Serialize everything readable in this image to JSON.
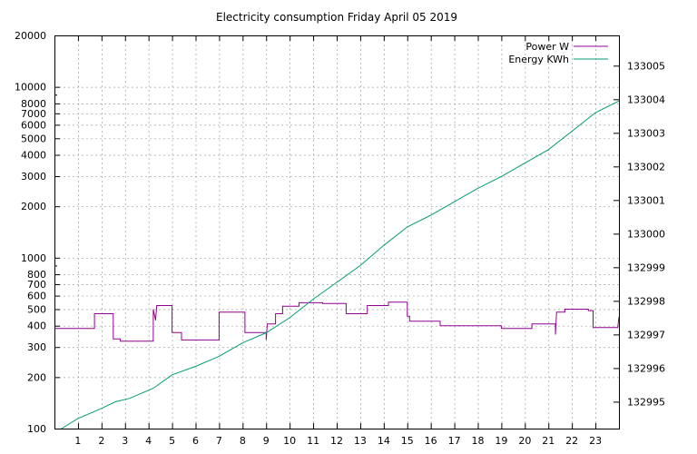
{
  "chart_data": {
    "type": "line",
    "title": "Electricity consumption Friday April 05 2019",
    "x": {
      "range": [
        0,
        24
      ],
      "ticks": [
        1,
        2,
        3,
        4,
        5,
        6,
        7,
        8,
        9,
        10,
        11,
        12,
        13,
        14,
        15,
        16,
        17,
        18,
        19,
        20,
        21,
        22,
        23
      ],
      "tick_labels": [
        "1",
        "2",
        "3",
        "4",
        "5",
        "6",
        "7",
        "8",
        "9",
        "10",
        "11",
        "12",
        "13",
        "14",
        "15",
        "16",
        "17",
        "18",
        "19",
        "20",
        "21",
        "22",
        "23"
      ]
    },
    "y_left": {
      "scale": "log",
      "range": [
        100,
        20000
      ],
      "ticks": [
        100,
        200,
        300,
        400,
        500,
        600,
        700,
        800,
        1000,
        2000,
        3000,
        4000,
        5000,
        6000,
        7000,
        8000,
        10000,
        20000
      ],
      "tick_labels": [
        "100",
        "200",
        "300",
        "400",
        "500",
        "600",
        "700",
        "800",
        "1000",
        "2000",
        "3000",
        "4000",
        "5000",
        "6000",
        "7000",
        "8000",
        "10000",
        "20000"
      ]
    },
    "y_right": {
      "scale": "linear",
      "range": [
        132994.2,
        133005.9
      ],
      "ticks": [
        132995,
        132996,
        132997,
        132998,
        132999,
        133000,
        133001,
        133002,
        133003,
        133004,
        133005
      ],
      "tick_labels": [
        "132995",
        "132996",
        "132997",
        "132998",
        "132999",
        "133000",
        "133001",
        "133002",
        "133003",
        "133004",
        "133005"
      ]
    },
    "grid": true,
    "legend_position": "top-right",
    "series": [
      {
        "name": "Power W",
        "axis": "left",
        "color": "#940094",
        "step": true,
        "points": [
          [
            0,
            385
          ],
          [
            1.7,
            385
          ],
          [
            1.7,
            470
          ],
          [
            2.5,
            470
          ],
          [
            2.5,
            335
          ],
          [
            2.8,
            335
          ],
          [
            2.8,
            325
          ],
          [
            4.2,
            325
          ],
          [
            4.2,
            500
          ],
          [
            4.3,
            430
          ],
          [
            4.35,
            525
          ],
          [
            5.0,
            525
          ],
          [
            5.0,
            365
          ],
          [
            5.4,
            365
          ],
          [
            5.4,
            330
          ],
          [
            7.0,
            330
          ],
          [
            7.0,
            480
          ],
          [
            8.1,
            480
          ],
          [
            8.1,
            365
          ],
          [
            9.0,
            365
          ],
          [
            9.0,
            330
          ],
          [
            9.05,
            410
          ],
          [
            9.4,
            410
          ],
          [
            9.4,
            470
          ],
          [
            9.7,
            470
          ],
          [
            9.7,
            520
          ],
          [
            10.4,
            520
          ],
          [
            10.4,
            545
          ],
          [
            11.4,
            545
          ],
          [
            11.4,
            540
          ],
          [
            12.4,
            540
          ],
          [
            12.4,
            470
          ],
          [
            13.3,
            470
          ],
          [
            13.3,
            525
          ],
          [
            14.2,
            525
          ],
          [
            14.2,
            550
          ],
          [
            15.0,
            550
          ],
          [
            15.0,
            455
          ],
          [
            15.1,
            455
          ],
          [
            15.1,
            425
          ],
          [
            16.4,
            425
          ],
          [
            16.4,
            400
          ],
          [
            19.0,
            400
          ],
          [
            19.0,
            385
          ],
          [
            20.3,
            385
          ],
          [
            20.3,
            410
          ],
          [
            21.3,
            410
          ],
          [
            21.3,
            355
          ],
          [
            21.35,
            480
          ],
          [
            21.7,
            480
          ],
          [
            21.7,
            500
          ],
          [
            22.7,
            500
          ],
          [
            22.7,
            490
          ],
          [
            22.9,
            490
          ],
          [
            22.9,
            390
          ],
          [
            23.95,
            390
          ],
          [
            24,
            450
          ]
        ]
      },
      {
        "name": "Energy KWh",
        "axis": "right",
        "color": "#009e73",
        "step": false,
        "points": [
          [
            0.3,
            132994.2
          ],
          [
            1,
            132994.5
          ],
          [
            2,
            132994.8
          ],
          [
            2.6,
            132995.0
          ],
          [
            3.2,
            132995.1
          ],
          [
            4.2,
            132995.4
          ],
          [
            5,
            132995.8
          ],
          [
            6,
            132996.05
          ],
          [
            7,
            132996.35
          ],
          [
            8,
            132996.75
          ],
          [
            9,
            132997.05
          ],
          [
            10,
            132997.5
          ],
          [
            11,
            132998.05
          ],
          [
            12,
            132998.55
          ],
          [
            13,
            132999.05
          ],
          [
            14,
            132999.65
          ],
          [
            15,
            133000.2
          ],
          [
            16,
            133000.55
          ],
          [
            17,
            133000.95
          ],
          [
            18,
            133001.35
          ],
          [
            19,
            133001.7
          ],
          [
            20,
            133002.1
          ],
          [
            21,
            133002.5
          ],
          [
            22,
            133003.05
          ],
          [
            23,
            133003.6
          ],
          [
            24,
            133003.95
          ]
        ]
      }
    ]
  }
}
